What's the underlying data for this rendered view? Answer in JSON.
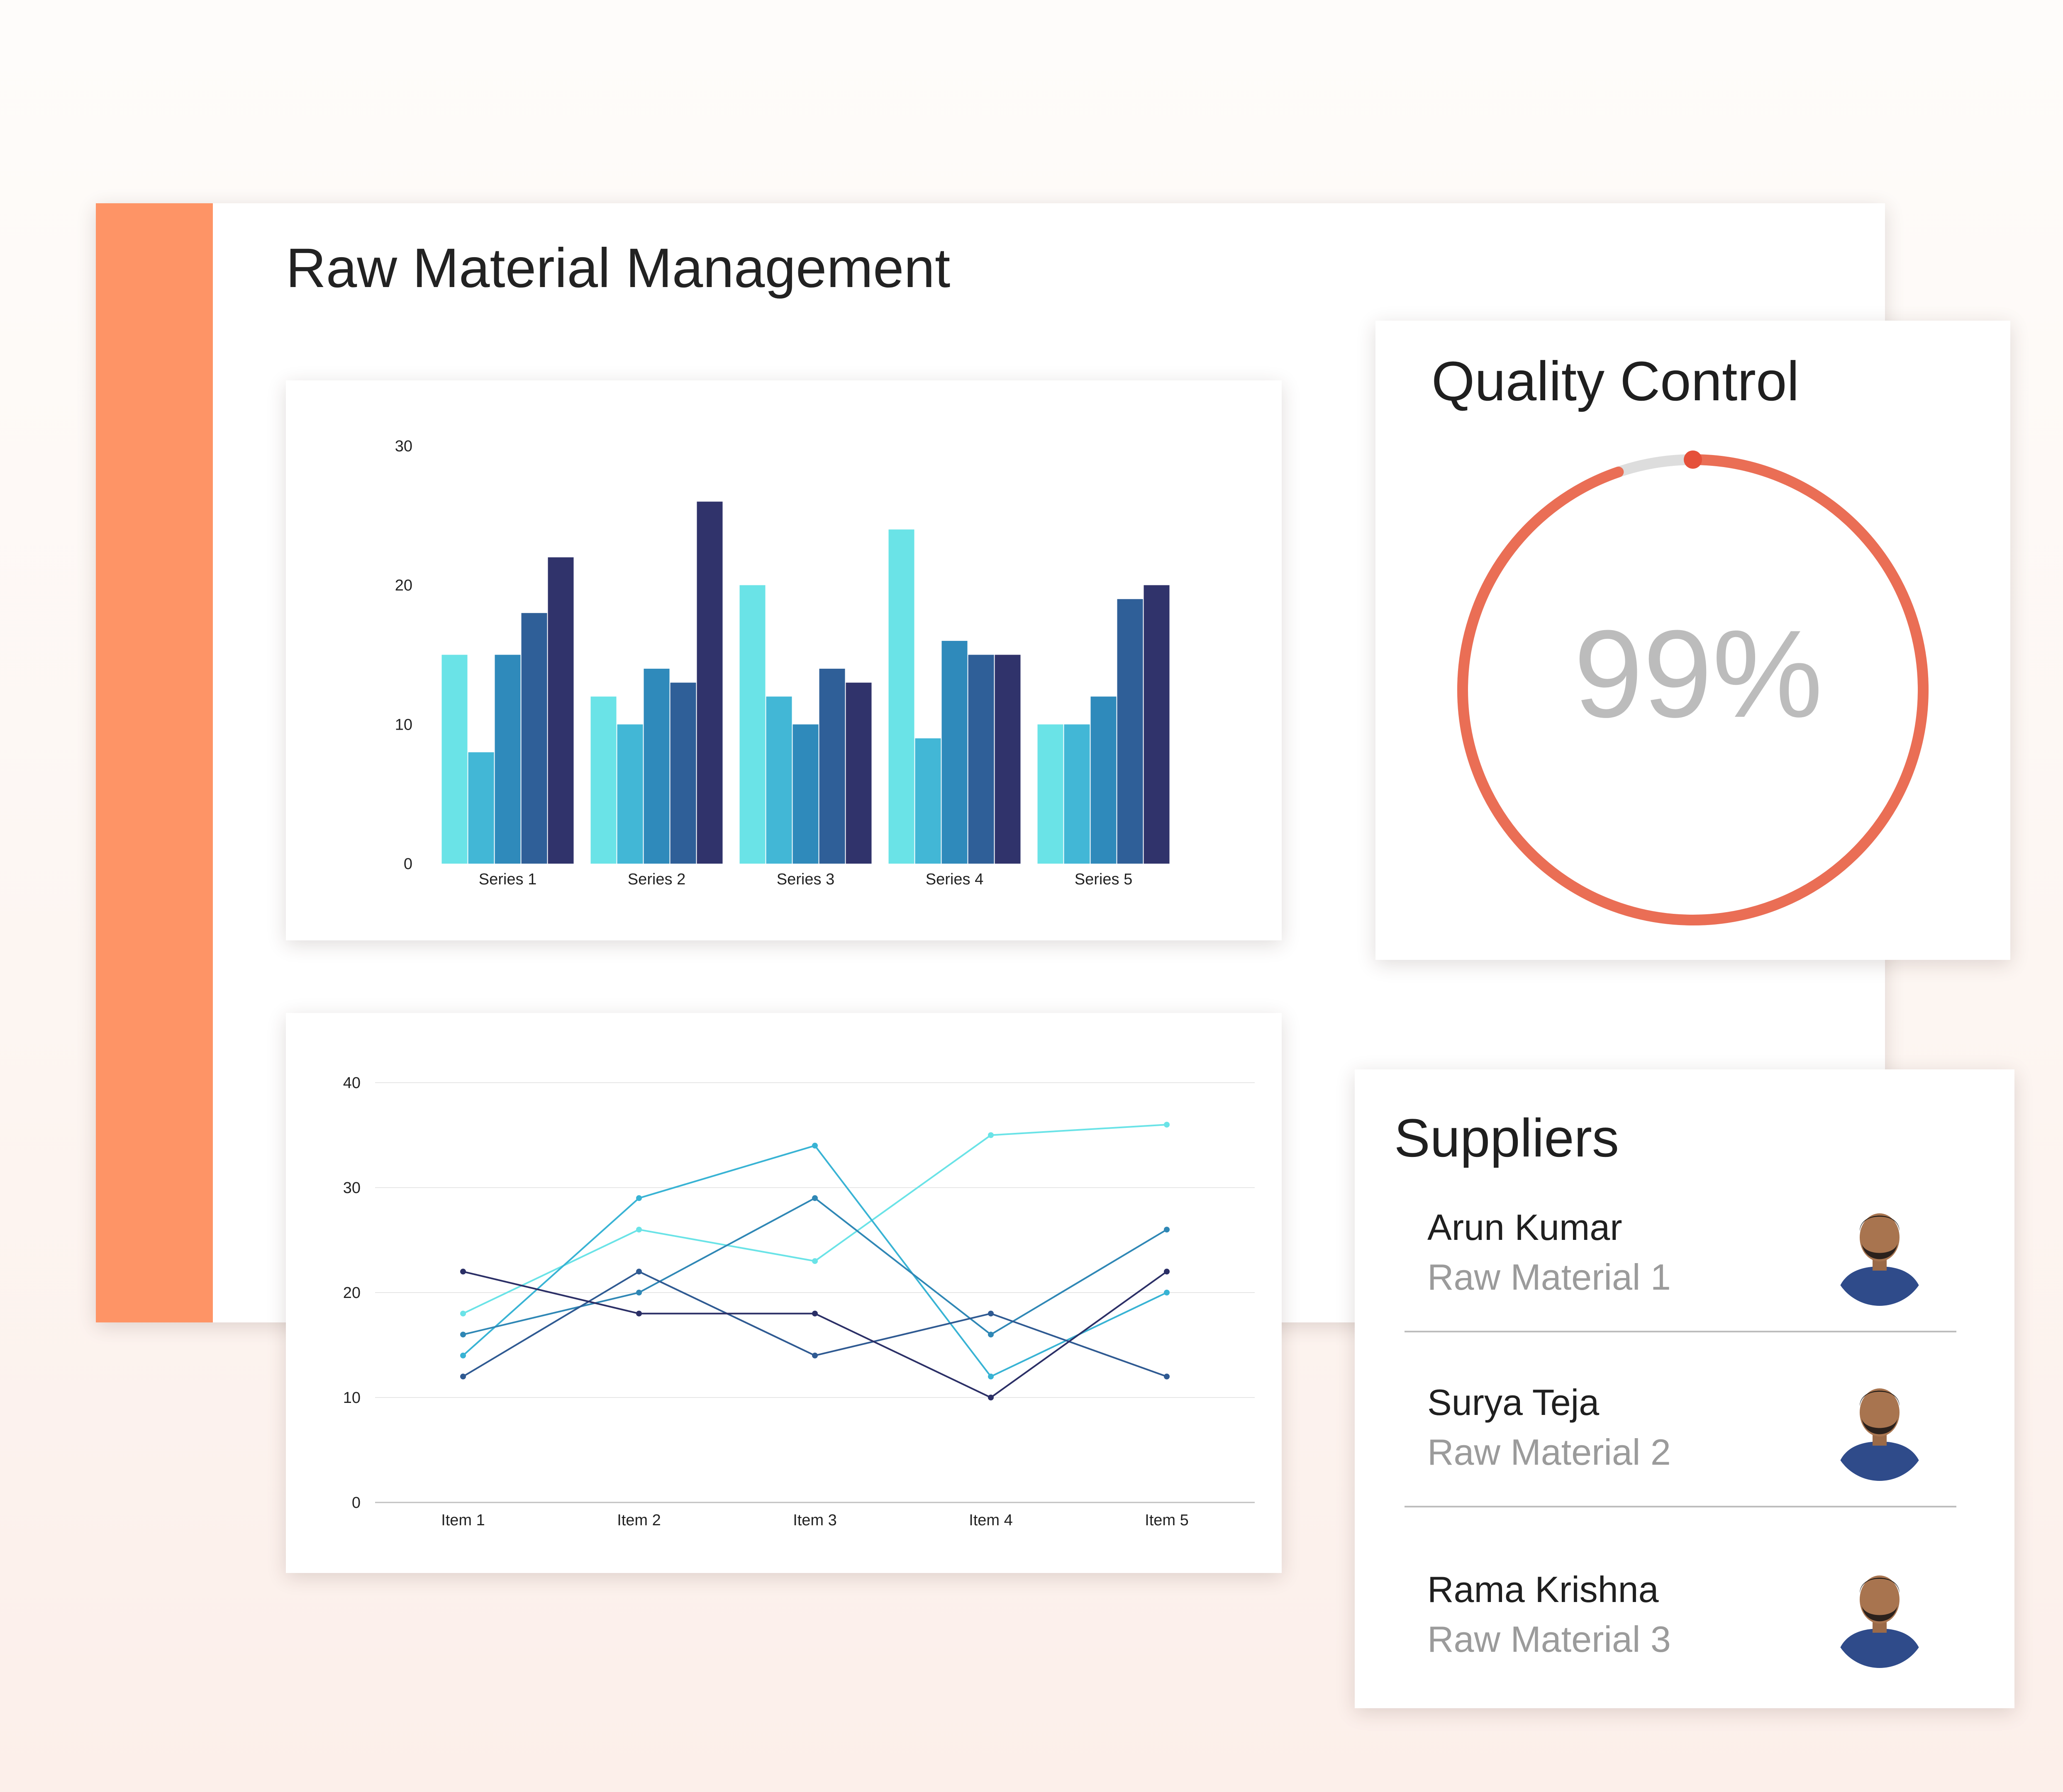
{
  "app": {
    "title": "Raw Material Management",
    "colors": {
      "accent": "#fe9466",
      "gauge": "#ea6e55",
      "gauge_track": "#dddddd",
      "percent_text": "#bcbcbc"
    }
  },
  "quality": {
    "title": "Quality Control",
    "percent_label": "99%",
    "value": 0.99
  },
  "suppliers": {
    "title": "Suppliers",
    "items": [
      {
        "name": "Arun Kumar",
        "role": "Raw Material 1",
        "avatar": "person-avatar"
      },
      {
        "name": "Surya Teja",
        "role": "Raw Material 2",
        "avatar": "person-avatar"
      },
      {
        "name": "Rama Krishna",
        "role": "Raw Material 3",
        "avatar": "person-avatar"
      }
    ]
  },
  "chart_data": [
    {
      "type": "bar",
      "categories": [
        "Series 1",
        "Series 2",
        "Series 3",
        "Series 4",
        "Series 5"
      ],
      "series": [
        {
          "values": [
            15,
            12,
            20,
            24,
            10
          ],
          "color": "#6ae3e7"
        },
        {
          "values": [
            8,
            10,
            12,
            9,
            10
          ],
          "color": "#42b7d6"
        },
        {
          "values": [
            15,
            14,
            10,
            16,
            12
          ],
          "color": "#2f8abb"
        },
        {
          "values": [
            18,
            13,
            14,
            15,
            19
          ],
          "color": "#2f5f98"
        },
        {
          "values": [
            22,
            26,
            13,
            15,
            20
          ],
          "color": "#30336b"
        }
      ],
      "ylim": [
        0,
        30
      ],
      "yticks": [
        0,
        10,
        20,
        30
      ],
      "grid": false
    },
    {
      "type": "line",
      "categories": [
        "Item 1",
        "Item 2",
        "Item 3",
        "Item 4",
        "Item 5"
      ],
      "series": [
        {
          "values": [
            18,
            26,
            23,
            35,
            36
          ],
          "color": "#6ae3e7"
        },
        {
          "values": [
            14,
            29,
            34,
            12,
            20
          ],
          "color": "#38b3d4"
        },
        {
          "values": [
            16,
            20,
            29,
            16,
            26
          ],
          "color": "#2f87b5"
        },
        {
          "values": [
            12,
            22,
            14,
            18,
            12
          ],
          "color": "#2f5a92"
        },
        {
          "values": [
            22,
            18,
            18,
            10,
            22
          ],
          "color": "#2b2f66"
        }
      ],
      "ylim": [
        0,
        40
      ],
      "yticks": [
        0,
        10,
        20,
        30,
        40
      ],
      "grid": true
    }
  ]
}
